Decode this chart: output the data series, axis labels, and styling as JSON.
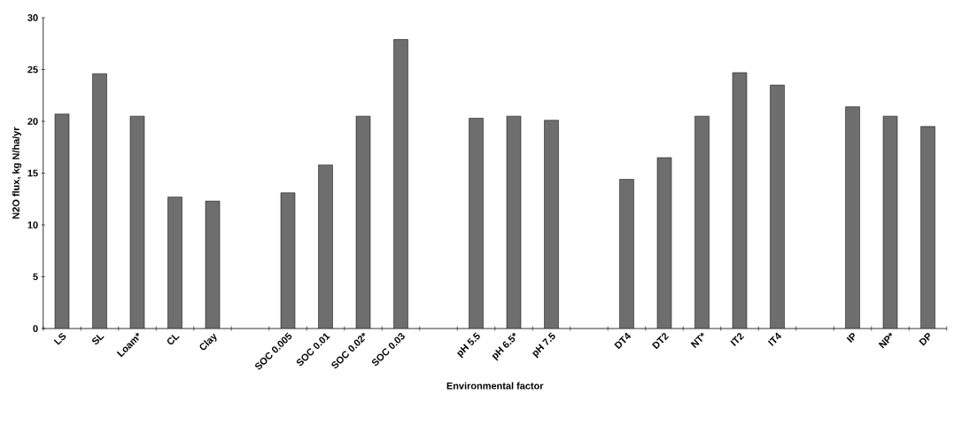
{
  "chart_data": {
    "type": "bar",
    "xlabel": "Environmental factor",
    "ylabel": "N2O flux, kg N/ha/yr",
    "categories": [
      "LS",
      "SL",
      "Loam*",
      "CL",
      "Clay",
      null,
      "SOC 0.005",
      "SOC 0.01",
      "SOC 0.02*",
      "SOC 0.03",
      null,
      "pH 5.5",
      "pH 6.5*",
      "pH 7.5",
      null,
      "DT4",
      "DT2",
      "NT*",
      "IT2",
      "IT4",
      null,
      "IP",
      "NP*",
      "DP"
    ],
    "values": [
      20.7,
      24.6,
      20.5,
      12.7,
      12.3,
      null,
      13.1,
      15.8,
      20.5,
      27.9,
      null,
      20.3,
      20.5,
      20.1,
      null,
      14.4,
      16.5,
      20.5,
      24.7,
      23.5,
      null,
      21.4,
      20.5,
      19.5
    ],
    "color": "#6e6e6e",
    "ylim": [
      0,
      30
    ],
    "yticks": [
      0,
      5,
      10,
      15,
      20,
      25,
      30
    ],
    "grid": false
  }
}
